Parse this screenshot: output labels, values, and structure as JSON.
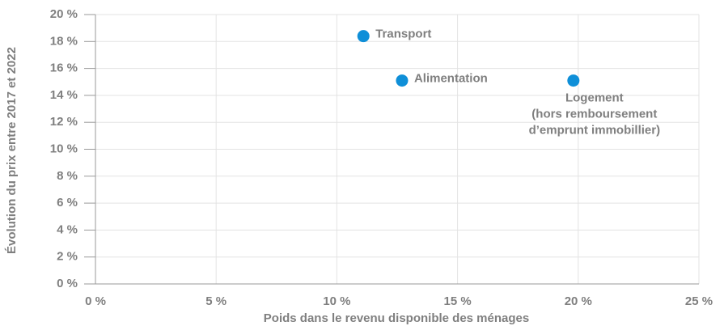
{
  "chart_data": {
    "type": "scatter",
    "x_label": "Poids dans le revenu disponible des ménages",
    "y_label": "Évolution du prix entre 2017 et 2022",
    "x": [
      11.1,
      12.7,
      19.8
    ],
    "values": [
      18.4,
      15.1,
      15.1
    ],
    "labels": [
      "Transport",
      "Alimentation",
      [
        "Logement",
        "(hors remboursement",
        "d’emprunt immobillier)"
      ]
    ],
    "color": "#0f8fd8",
    "xlim": [
      0,
      25
    ],
    "xticks": [
      {
        "value": 0,
        "label": "0 %"
      },
      {
        "value": 5,
        "label": "5 %"
      },
      {
        "value": 10,
        "label": "10 %"
      },
      {
        "value": 15,
        "label": "15 %"
      },
      {
        "value": 20,
        "label": "20 %"
      },
      {
        "value": 25,
        "label": "25 %"
      }
    ],
    "ylim": [
      0,
      20
    ],
    "yticks": [
      {
        "value": 0,
        "label": "0 %"
      },
      {
        "value": 2,
        "label": "2 %"
      },
      {
        "value": 4,
        "label": "4 %"
      },
      {
        "value": 6,
        "label": "6 %"
      },
      {
        "value": 8,
        "label": "8 %"
      },
      {
        "value": 10,
        "label": "10 %"
      },
      {
        "value": 12,
        "label": "12 %"
      },
      {
        "value": 14,
        "label": "14 %"
      },
      {
        "value": 16,
        "label": "16 %"
      },
      {
        "value": 18,
        "label": "18 %"
      },
      {
        "value": 20,
        "label": "20 %"
      }
    ],
    "grid": true
  }
}
